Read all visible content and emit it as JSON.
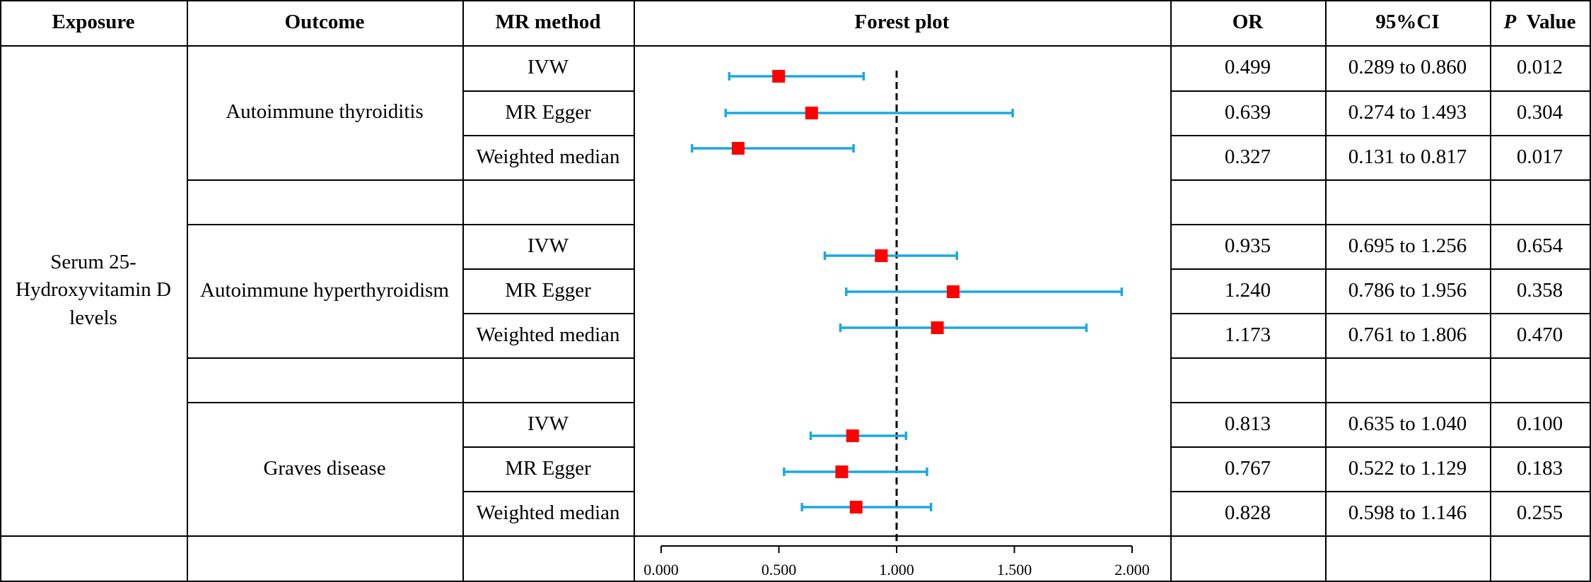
{
  "headers": {
    "exposure": "Exposure",
    "outcome": "Outcome",
    "method": "MR method",
    "forest": "Forest plot",
    "or": "OR",
    "ci": "95%CI",
    "p_italic": "P",
    "p_rest": "Value"
  },
  "exposure": "Serum 25-Hydroxyvitamin D levels",
  "outcomes": [
    "Autoimmune thyroiditis",
    "Autoimmune hyperthyroidism",
    "Graves disease"
  ],
  "rows": [
    {
      "method": "IVW",
      "or": "0.499",
      "ci": "0.289 to 0.860",
      "p": "0.012"
    },
    {
      "method": "MR Egger",
      "or": "0.639",
      "ci": "0.274 to 1.493",
      "p": "0.304"
    },
    {
      "method": "Weighted median",
      "or": "0.327",
      "ci": "0.131 to 0.817",
      "p": "0.017"
    },
    {
      "method": "IVW",
      "or": "0.935",
      "ci": "0.695 to 1.256",
      "p": "0.654"
    },
    {
      "method": "MR Egger",
      "or": "1.240",
      "ci": "0.786 to 1.956",
      "p": "0.358"
    },
    {
      "method": "Weighted median",
      "or": "1.173",
      "ci": "0.761 to 1.806",
      "p": "0.470"
    },
    {
      "method": "IVW",
      "or": "0.813",
      "ci": "0.635 to 1.040",
      "p": "0.100"
    },
    {
      "method": "MR Egger",
      "or": "0.767",
      "ci": "0.522 to 1.129",
      "p": "0.183"
    },
    {
      "method": "Weighted median",
      "or": "0.828",
      "ci": "0.598 to 1.146",
      "p": "0.255"
    }
  ],
  "colors": {
    "ci_line": "#1ca8e0",
    "point": "#ff0000",
    "reference": "#000000"
  },
  "chart_data": {
    "type": "forest",
    "title": "Forest plot",
    "xlim": [
      0,
      2
    ],
    "ticks": [
      0,
      0.5,
      1,
      1.5,
      2
    ],
    "tick_labels": [
      "0.000",
      "0.500",
      "1.000",
      "1.500",
      "2.000"
    ],
    "reference_line": 1,
    "series": [
      {
        "name": "Autoimmune thyroiditis",
        "points": [
          {
            "method": "IVW",
            "or": 0.499,
            "lower": 0.289,
            "upper": 0.86
          },
          {
            "method": "MR Egger",
            "or": 0.639,
            "lower": 0.274,
            "upper": 1.493
          },
          {
            "method": "Weighted median",
            "or": 0.327,
            "lower": 0.131,
            "upper": 0.817
          }
        ]
      },
      {
        "name": "Autoimmune hyperthyroidism",
        "points": [
          {
            "method": "IVW",
            "or": 0.935,
            "lower": 0.695,
            "upper": 1.256
          },
          {
            "method": "MR Egger",
            "or": 1.24,
            "lower": 0.786,
            "upper": 1.956
          },
          {
            "method": "Weighted median",
            "or": 1.173,
            "lower": 0.761,
            "upper": 1.806
          }
        ]
      },
      {
        "name": "Graves disease",
        "points": [
          {
            "method": "IVW",
            "or": 0.813,
            "lower": 0.635,
            "upper": 1.04
          },
          {
            "method": "MR Egger",
            "or": 0.767,
            "lower": 0.522,
            "upper": 1.129
          },
          {
            "method": "Weighted median",
            "or": 0.828,
            "lower": 0.598,
            "upper": 1.146
          }
        ]
      }
    ]
  }
}
